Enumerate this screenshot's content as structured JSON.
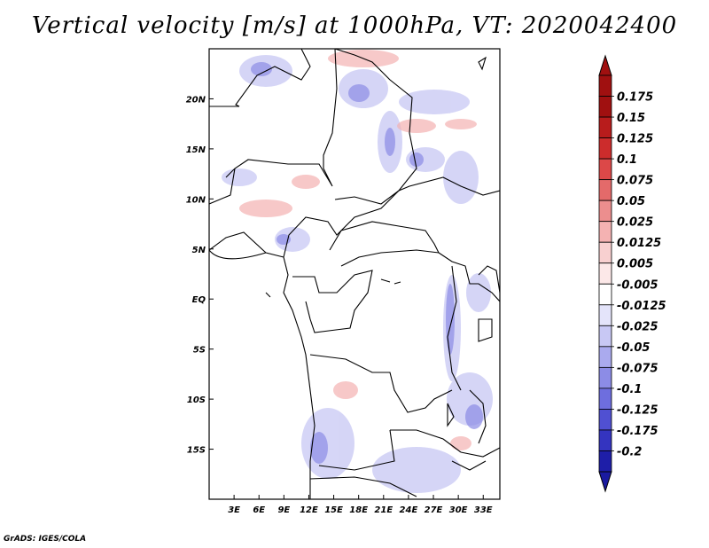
{
  "title": "Vertical velocity [m/s] at 1000hPa, VT: 2020042400",
  "credit": "GrADS: IGES/COLA",
  "map": {
    "projection": "lat-lon",
    "lon_range": [
      0,
      35
    ],
    "lat_range": [
      -20,
      25
    ],
    "lat_ticks": [
      {
        "value": 20,
        "label": "20N"
      },
      {
        "value": 15,
        "label": "15N"
      },
      {
        "value": 10,
        "label": "10N"
      },
      {
        "value": 5,
        "label": "5N"
      },
      {
        "value": 0,
        "label": "EQ"
      },
      {
        "value": -5,
        "label": "5S"
      },
      {
        "value": -10,
        "label": "10S"
      },
      {
        "value": -15,
        "label": "15S"
      }
    ],
    "lon_ticks": [
      {
        "value": 3,
        "label": "3E"
      },
      {
        "value": 6,
        "label": "6E"
      },
      {
        "value": 9,
        "label": "9E"
      },
      {
        "value": 12,
        "label": "12E"
      },
      {
        "value": 15,
        "label": "15E"
      },
      {
        "value": 18,
        "label": "18E"
      },
      {
        "value": 21,
        "label": "21E"
      },
      {
        "value": 24,
        "label": "24E"
      },
      {
        "value": 27,
        "label": "27E"
      },
      {
        "value": 30,
        "label": "30E"
      },
      {
        "value": 33,
        "label": "33E"
      }
    ]
  },
  "colorbar": {
    "levels": [
      {
        "label": "0.175",
        "color": "#a01010"
      },
      {
        "label": "0.15",
        "color": "#b81c1c"
      },
      {
        "label": "0.125",
        "color": "#cc2c2c"
      },
      {
        "label": "0.1",
        "color": "#dc4848"
      },
      {
        "label": "0.075",
        "color": "#e46a6a"
      },
      {
        "label": "0.05",
        "color": "#ec8e8e"
      },
      {
        "label": "0.025",
        "color": "#f4b2b2"
      },
      {
        "label": "0.0125",
        "color": "#f8d0d0"
      },
      {
        "label": "0.005",
        "color": "#fce8e8"
      },
      {
        "label": "-0.005",
        "color": "#ffffff"
      },
      {
        "label": "-0.0125",
        "color": "#e4e4fa"
      },
      {
        "label": "-0.025",
        "color": "#c8c8f4"
      },
      {
        "label": "-0.05",
        "color": "#aaaaee"
      },
      {
        "label": "-0.075",
        "color": "#8c8ce6"
      },
      {
        "label": "-0.1",
        "color": "#6e6ede"
      },
      {
        "label": "-0.125",
        "color": "#5050d2"
      },
      {
        "label": "-0.175",
        "color": "#3434c0"
      },
      {
        "label": "-0.2",
        "color": "#1e1ea8"
      }
    ],
    "top_color": "#a01010",
    "bottom_color": "#1a1aa0"
  }
}
